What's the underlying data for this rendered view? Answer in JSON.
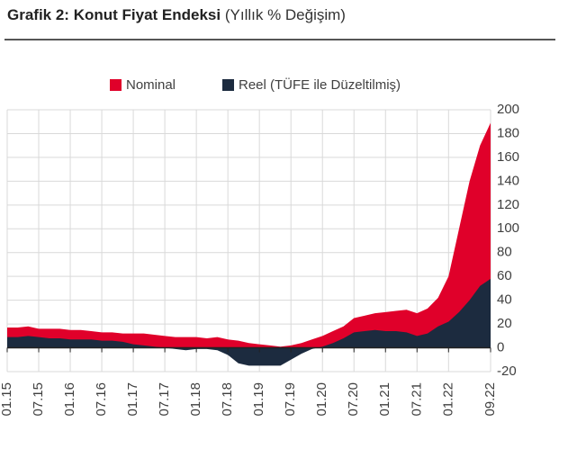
{
  "chart_data": {
    "type": "area",
    "title": "Grafik 2: Konut Fiyat Endeksi",
    "subtitle": "(Yıllık % Değişim)",
    "categories": [
      "01.15",
      null,
      null,
      "07.15",
      null,
      null,
      "01.16",
      null,
      null,
      "07.16",
      null,
      null,
      "01.17",
      null,
      null,
      "07.17",
      null,
      null,
      "01.18",
      null,
      null,
      "07.18",
      null,
      null,
      "01.19",
      null,
      null,
      "07.19",
      null,
      null,
      "01.20",
      null,
      null,
      "07.20",
      null,
      null,
      "01.21",
      null,
      null,
      "07.21",
      null,
      null,
      "01.22",
      null,
      null,
      null,
      "09.22"
    ],
    "series": [
      {
        "name": "Nominal",
        "color": "#e0002a",
        "values": [
          17,
          17,
          18,
          16,
          16,
          16,
          15,
          15,
          14,
          13,
          13,
          12,
          12,
          12,
          11,
          10,
          9,
          9,
          9,
          8,
          9,
          7,
          6,
          4,
          3,
          2,
          1,
          2,
          4,
          7,
          10,
          14,
          18,
          25,
          27,
          29,
          30,
          31,
          32,
          29,
          33,
          42,
          60,
          100,
          140,
          170,
          189
        ]
      },
      {
        "name": "Reel (TÜFE ile Düzeltilmiş)",
        "color": "#1c2b3f",
        "values": [
          9,
          9,
          10,
          9,
          8,
          8,
          7,
          7,
          7,
          6,
          6,
          5,
          3,
          2,
          1,
          0,
          -1,
          -2,
          -1,
          -1,
          -2,
          -6,
          -13,
          -15,
          -15,
          -15,
          -15,
          -10,
          -5,
          -1,
          1,
          4,
          8,
          13,
          14,
          15,
          14,
          14,
          13,
          10,
          12,
          18,
          22,
          30,
          40,
          52,
          58
        ]
      }
    ],
    "ylim": [
      -20,
      200
    ],
    "yticks": [
      -20,
      0,
      20,
      40,
      60,
      80,
      100,
      120,
      140,
      160,
      180,
      200
    ],
    "grid": true
  }
}
